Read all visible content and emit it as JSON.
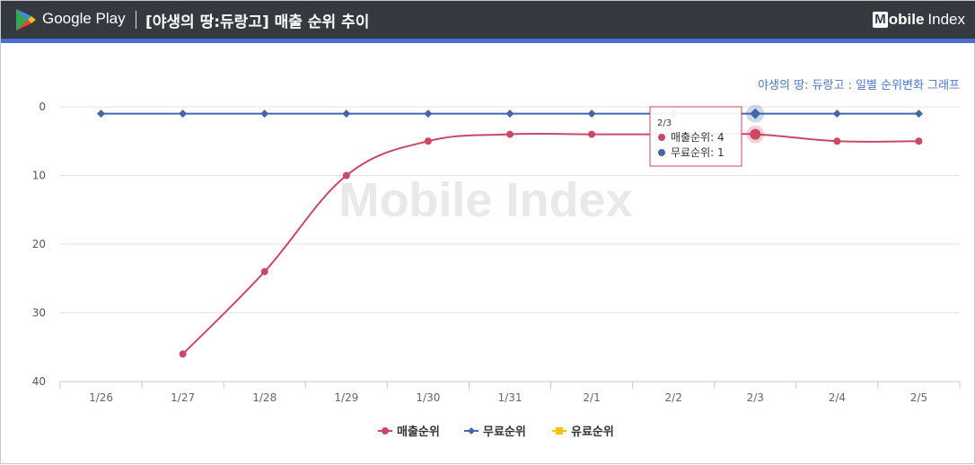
{
  "header": {
    "store_name": "Google Play",
    "title": "[야생의 땅:듀랑고] 매출 순위 추이",
    "brand_first": "M",
    "brand_rest": "obile",
    "brand_second": "Index"
  },
  "watermark": "Mobile Index",
  "colors": {
    "header_bg": "#343a40",
    "accent_bar": "#4a6fd1",
    "sales": "#cc4764",
    "free": "#4466aa",
    "paid": "#f5c400",
    "subtitle": "#4a78c8"
  },
  "chart_data": {
    "type": "line",
    "subtitle": "야생의 땅: 듀랑고 : 일별 순위변화 그래프",
    "categories": [
      "1/26",
      "1/27",
      "1/28",
      "1/29",
      "1/30",
      "1/31",
      "2/1",
      "2/2",
      "2/3",
      "2/4",
      "2/5"
    ],
    "y_ticks": [
      "0",
      "10",
      "20",
      "30",
      "40"
    ],
    "ylim": [
      0,
      40
    ],
    "y_reversed": true,
    "grid": true,
    "legend_position": "bottom",
    "series": [
      {
        "name": "매출순위",
        "values": [
          null,
          36,
          24,
          10,
          5,
          4,
          4,
          4,
          4,
          5,
          5
        ],
        "color": "#cc4764",
        "marker": "circle"
      },
      {
        "name": "무료순위",
        "values": [
          1,
          1,
          1,
          1,
          1,
          1,
          1,
          1,
          1,
          1,
          1
        ],
        "color": "#4466aa",
        "marker": "diamond"
      },
      {
        "name": "유료순위",
        "values": [
          null,
          null,
          null,
          null,
          null,
          null,
          null,
          null,
          null,
          null,
          null
        ],
        "color": "#f5c400",
        "marker": "square"
      }
    ],
    "tooltip": {
      "category": "2/3",
      "rows": [
        {
          "label": "매출순위",
          "value": "4"
        },
        {
          "label": "무료순위",
          "value": "1"
        }
      ]
    }
  }
}
